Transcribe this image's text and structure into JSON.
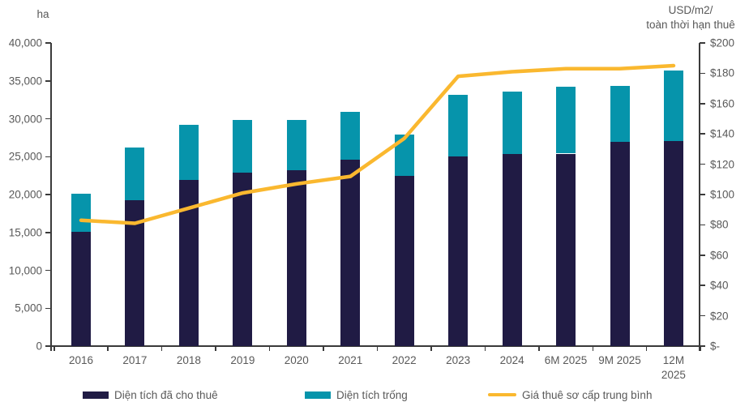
{
  "chart_data": {
    "type": "bar",
    "subtype": "stacked-bar-with-line-overlay",
    "title": "",
    "categories": [
      "2016",
      "2017",
      "2018",
      "2019",
      "2020",
      "2021",
      "2022",
      "2023",
      "2024",
      "6M 2025",
      "9M 2025",
      "12M\n2025"
    ],
    "series": [
      {
        "name": "Diện tích đã cho thuê",
        "type": "bar",
        "stack": true,
        "axis": "left",
        "color": "#201b44",
        "values": [
          15100,
          19300,
          21900,
          22900,
          23200,
          24600,
          22500,
          25000,
          25300,
          25400,
          27000,
          27100
        ]
      },
      {
        "name": "Diện tích trống",
        "type": "bar",
        "stack": true,
        "axis": "left",
        "color": "#0694ab",
        "values": [
          5000,
          6900,
          7300,
          6900,
          6600,
          6300,
          5400,
          8200,
          8300,
          8800,
          7300,
          9300
        ]
      },
      {
        "name": "Giá thuê sơ cấp trung bình",
        "type": "line",
        "axis": "right",
        "color": "#fab82f",
        "values": [
          83,
          81,
          91,
          101,
          107,
          112,
          137,
          178,
          181,
          183,
          183,
          185
        ]
      }
    ],
    "left_axis": {
      "title": "ha",
      "min": 0,
      "max": 40000,
      "step": 5000,
      "tick_labels": [
        "40,000",
        "35,000",
        "30,000",
        "25,000",
        "20,000",
        "15,000",
        "10,000",
        "5,000",
        "0"
      ]
    },
    "right_axis": {
      "title_lines": [
        "USD/m2/",
        "toàn thời hạn thuê"
      ],
      "min": 0,
      "max": 200,
      "step": 20,
      "tick_labels": [
        "$200",
        "$180",
        "$160",
        "$140",
        "$120",
        "$100",
        "$80",
        "$60",
        "$40",
        "$20",
        "$-"
      ]
    },
    "legend_position": "bottom",
    "gridlines": false
  },
  "colors": {
    "background": "#ffffff",
    "text": "#595959",
    "axis": "#3a3a3a",
    "bar_leased": "#201b44",
    "bar_vacant": "#0694ab",
    "line_rent": "#fab82f"
  }
}
